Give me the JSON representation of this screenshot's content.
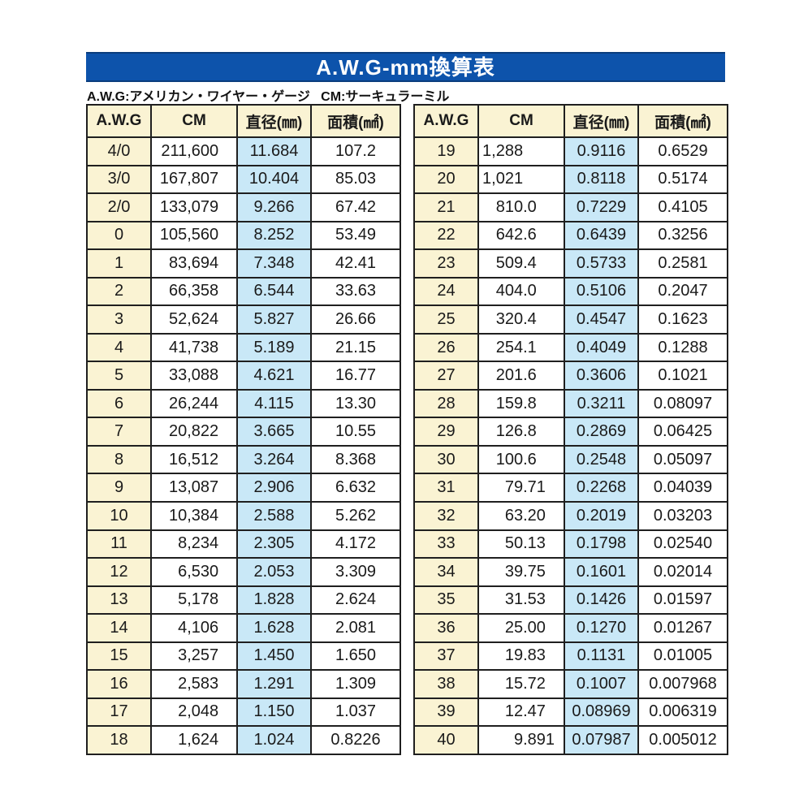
{
  "header": {
    "title": "A.W.G-mm換算表"
  },
  "legend": {
    "text": "A.W.G:アメリカン・ワイヤー・ゲージ   CM:サーキュラーミル"
  },
  "columns": [
    "A.W.G",
    "CM",
    "直径(㎜)",
    "面積(㎟)"
  ],
  "colors": {
    "banner-blue": "#0d53ab",
    "banner-edge": "#0a3d7d",
    "cream": "#faf3d3",
    "light-blue": "#c9e8f7",
    "border": "#1f1f1f",
    "text": "#1a1a1a"
  },
  "tables": [
    {
      "name": "awg-table-left",
      "rows": [
        [
          "4/0",
          "211,600",
          "11.684",
          "107.2"
        ],
        [
          "3/0",
          "167,807",
          "10.404",
          "85.03"
        ],
        [
          "2/0",
          "133,079",
          "9.266",
          "67.42"
        ],
        [
          "0",
          "105,560",
          "8.252",
          "53.49"
        ],
        [
          "1",
          "83,694",
          "7.348",
          "42.41"
        ],
        [
          "2",
          "66,358",
          "6.544",
          "33.63"
        ],
        [
          "3",
          "52,624",
          "5.827",
          "26.66"
        ],
        [
          "4",
          "41,738",
          "5.189",
          "21.15"
        ],
        [
          "5",
          "33,088",
          "4.621",
          "16.77"
        ],
        [
          "6",
          "26,244",
          "4.115",
          "13.30"
        ],
        [
          "7",
          "20,822",
          "3.665",
          "10.55"
        ],
        [
          "8",
          "16,512",
          "3.264",
          "8.368"
        ],
        [
          "9",
          "13,087",
          "2.906",
          "6.632"
        ],
        [
          "10",
          "10,384",
          "2.588",
          "5.262"
        ],
        [
          "11",
          "8,234",
          "2.305",
          "4.172"
        ],
        [
          "12",
          "6,530",
          "2.053",
          "3.309"
        ],
        [
          "13",
          "5,178",
          "1.828",
          "2.624"
        ],
        [
          "14",
          "4,106",
          "1.628",
          "2.081"
        ],
        [
          "15",
          "3,257",
          "1.450",
          "1.650"
        ],
        [
          "16",
          "2,583",
          "1.291",
          "1.309"
        ],
        [
          "17",
          "2,048",
          "1.150",
          "1.037"
        ],
        [
          "18",
          "1,624",
          "1.024",
          "0.8226"
        ]
      ]
    },
    {
      "name": "awg-table-right",
      "rows": [
        [
          "19",
          "1,288",
          "0.9116",
          "0.6529"
        ],
        [
          "20",
          "1,021",
          "0.8118",
          "0.5174"
        ],
        [
          "21",
          "810.0",
          "0.7229",
          "0.4105"
        ],
        [
          "22",
          "642.6",
          "0.6439",
          "0.3256"
        ],
        [
          "23",
          "509.4",
          "0.5733",
          "0.2581"
        ],
        [
          "24",
          "404.0",
          "0.5106",
          "0.2047"
        ],
        [
          "25",
          "320.4",
          "0.4547",
          "0.1623"
        ],
        [
          "26",
          "254.1",
          "0.4049",
          "0.1288"
        ],
        [
          "27",
          "201.6",
          "0.3606",
          "0.1021"
        ],
        [
          "28",
          "159.8",
          "0.3211",
          "0.08097"
        ],
        [
          "29",
          "126.8",
          "0.2869",
          "0.06425"
        ],
        [
          "30",
          "100.6",
          "0.2548",
          "0.05097"
        ],
        [
          "31",
          "79.71",
          "0.2268",
          "0.04039"
        ],
        [
          "32",
          "63.20",
          "0.2019",
          "0.03203"
        ],
        [
          "33",
          "50.13",
          "0.1798",
          "0.02540"
        ],
        [
          "34",
          "39.75",
          "0.1601",
          "0.02014"
        ],
        [
          "35",
          "31.53",
          "0.1426",
          "0.01597"
        ],
        [
          "36",
          "25.00",
          "0.1270",
          "0.01267"
        ],
        [
          "37",
          "19.83",
          "0.1131",
          "0.01005"
        ],
        [
          "38",
          "15.72",
          "0.1007",
          "0.007968"
        ],
        [
          "39",
          "12.47",
          "0.08969",
          "0.006319"
        ],
        [
          "40",
          "9.891",
          "0.07987",
          "0.005012"
        ]
      ]
    }
  ]
}
